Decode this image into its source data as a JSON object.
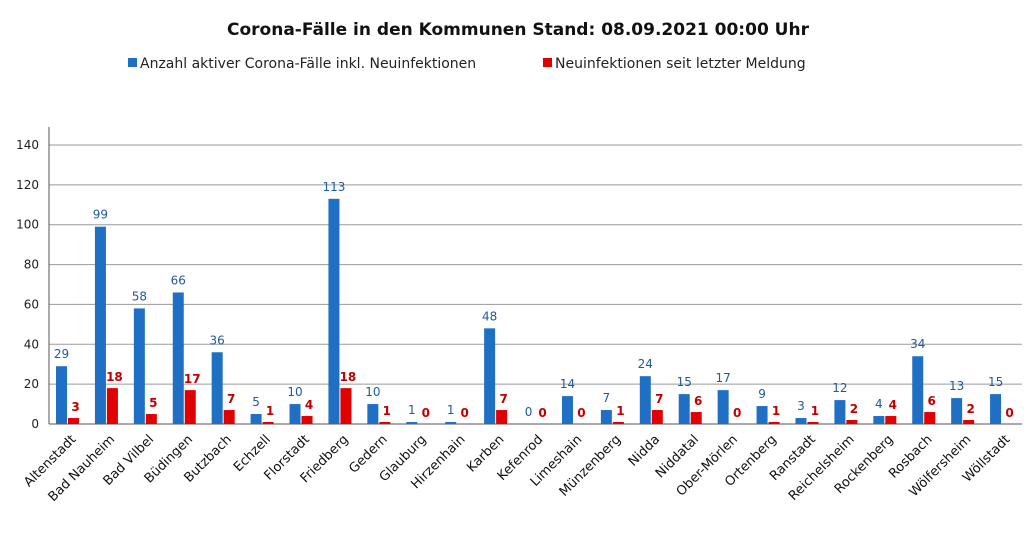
{
  "chart_data": {
    "type": "bar",
    "title": "Corona-Fälle in den Kommunen Stand: 08.09.2021 00:00 Uhr",
    "categories": [
      "Altenstadt",
      "Bad Nauheim",
      "Bad Vilbel",
      "Büdingen",
      "Butzbach",
      "Echzell",
      "Florstadt",
      "Friedberg",
      "Gedern",
      "Glauburg",
      "Hirzenhain",
      "Karben",
      "Kefenrod",
      "Limeshain",
      "Münzenberg",
      "Nidda",
      "Niddatal",
      "Ober-Mörlen",
      "Ortenberg",
      "Ranstadt",
      "Reichelsheim",
      "Rockenberg",
      "Rosbach",
      "Wölfersheim",
      "Wöllstadt"
    ],
    "series": [
      {
        "name": "Anzahl aktiver Corona-Fälle inkl. Neuinfektionen",
        "color": "#1f6fc5",
        "values": [
          29,
          99,
          58,
          66,
          36,
          5,
          10,
          113,
          10,
          1,
          1,
          48,
          0,
          14,
          7,
          24,
          15,
          17,
          9,
          3,
          12,
          4,
          34,
          13,
          15
        ]
      },
      {
        "name": "Neuinfektionen seit letzter Meldung",
        "color": "#e00000",
        "values": [
          3,
          18,
          5,
          17,
          7,
          1,
          4,
          18,
          1,
          0,
          0,
          7,
          0,
          0,
          1,
          7,
          6,
          0,
          1,
          1,
          2,
          4,
          6,
          2,
          0
        ]
      }
    ],
    "yticks": [
      0,
      20,
      40,
      60,
      80,
      100,
      120,
      140
    ],
    "ylim": [
      0,
      140
    ],
    "grid": true,
    "legend_position": "top"
  }
}
